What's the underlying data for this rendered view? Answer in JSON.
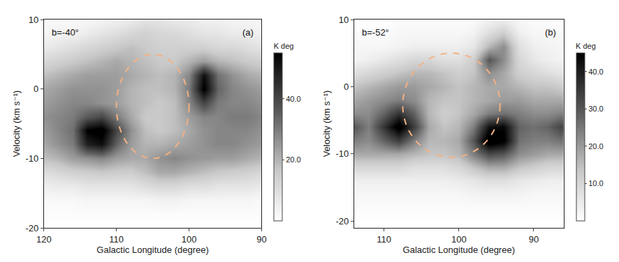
{
  "chart_data": [
    {
      "type": "heatmap",
      "title": "b=-40°",
      "label": "(a)",
      "x_label": "Galactic Longitude (degree)",
      "y_label": "Velocity (km s⁻¹)",
      "xlim": [
        120,
        90
      ],
      "xticks": [
        120,
        110,
        100,
        90
      ],
      "ylim": [
        -20,
        10
      ],
      "yticks": [
        -20,
        -10,
        0,
        10
      ],
      "x": [
        90,
        92,
        94,
        96,
        98,
        100,
        102,
        104,
        106,
        108,
        110,
        112,
        114,
        116,
        118,
        120
      ],
      "y": [
        -20,
        -18,
        -16,
        -14,
        -12,
        -10,
        -8,
        -6,
        -4,
        -2,
        0,
        2,
        4,
        6,
        8,
        10
      ],
      "z": [
        [
          0,
          0,
          0,
          0,
          0,
          0,
          0,
          0,
          0,
          0,
          0,
          0,
          0,
          0,
          0,
          0
        ],
        [
          1,
          1,
          1,
          1,
          1,
          1,
          1,
          1,
          1,
          1,
          1,
          1,
          1,
          1,
          1,
          1
        ],
        [
          2,
          3,
          3,
          3,
          3,
          3,
          4,
          4,
          3,
          3,
          3,
          3,
          3,
          2,
          2,
          2
        ],
        [
          6,
          8,
          8,
          8,
          10,
          10,
          12,
          12,
          10,
          8,
          8,
          8,
          8,
          6,
          6,
          5
        ],
        [
          12,
          14,
          15,
          16,
          18,
          20,
          22,
          22,
          18,
          15,
          15,
          16,
          15,
          14,
          12,
          10
        ],
        [
          20,
          22,
          24,
          24,
          25,
          26,
          28,
          26,
          22,
          22,
          24,
          28,
          26,
          24,
          20,
          18
        ],
        [
          24,
          26,
          28,
          28,
          26,
          24,
          22,
          20,
          20,
          24,
          34,
          52,
          48,
          30,
          26,
          22
        ],
        [
          26,
          28,
          28,
          28,
          26,
          22,
          18,
          16,
          18,
          26,
          40,
          58,
          55,
          32,
          28,
          24
        ],
        [
          28,
          30,
          30,
          28,
          28,
          24,
          18,
          16,
          16,
          22,
          30,
          40,
          36,
          30,
          28,
          26
        ],
        [
          26,
          28,
          28,
          30,
          40,
          28,
          18,
          16,
          18,
          20,
          24,
          26,
          28,
          28,
          26,
          24
        ],
        [
          24,
          26,
          28,
          34,
          56,
          30,
          20,
          18,
          18,
          20,
          24,
          26,
          26,
          26,
          24,
          22
        ],
        [
          20,
          22,
          26,
          32,
          52,
          28,
          20,
          18,
          20,
          22,
          24,
          24,
          24,
          22,
          20,
          18
        ],
        [
          14,
          16,
          18,
          20,
          24,
          20,
          16,
          16,
          18,
          20,
          22,
          20,
          18,
          16,
          14,
          12
        ],
        [
          8,
          10,
          12,
          12,
          14,
          14,
          14,
          14,
          16,
          18,
          16,
          14,
          12,
          10,
          8,
          6
        ],
        [
          4,
          6,
          6,
          8,
          8,
          10,
          12,
          12,
          14,
          12,
          10,
          8,
          6,
          4,
          4,
          3
        ],
        [
          2,
          3,
          3,
          4,
          4,
          6,
          6,
          8,
          8,
          6,
          4,
          3,
          2,
          2,
          2,
          2
        ]
      ],
      "colorbar": {
        "title": "K deg",
        "zlim": [
          0,
          55
        ],
        "ticks": [
          {
            "value": 20,
            "label": "20.0"
          },
          {
            "value": 40,
            "label": "40.0"
          }
        ]
      },
      "shell": {
        "x": [
          100,
          110
        ],
        "y": [
          -10,
          5
        ]
      }
    },
    {
      "type": "heatmap",
      "title": "b=-52°",
      "label": "(b)",
      "x_label": "Galactic Longitude (degree)",
      "y_label": "Velocity (km s⁻¹)",
      "xlim": [
        114,
        86
      ],
      "xticks": [
        110,
        100,
        90
      ],
      "ylim": [
        -21,
        10
      ],
      "yticks": [
        -20,
        -10,
        0,
        10
      ],
      "x": [
        86,
        88,
        90,
        92,
        94,
        96,
        98,
        100,
        102,
        104,
        106,
        108,
        110,
        112,
        114
      ],
      "y": [
        -20,
        -18,
        -16,
        -14,
        -12,
        -10,
        -8,
        -6,
        -4,
        -2,
        0,
        2,
        4,
        6,
        8,
        10
      ],
      "z": [
        [
          0,
          0,
          0,
          0,
          0,
          0,
          0,
          0,
          0,
          0,
          0,
          0,
          0,
          0,
          0
        ],
        [
          1,
          1,
          1,
          1,
          1,
          1,
          1,
          1,
          1,
          1,
          1,
          1,
          1,
          1,
          1
        ],
        [
          2,
          2,
          2,
          3,
          3,
          3,
          3,
          2,
          2,
          2,
          2,
          2,
          2,
          2,
          2
        ],
        [
          4,
          4,
          5,
          6,
          8,
          8,
          6,
          5,
          4,
          4,
          4,
          4,
          4,
          4,
          4
        ],
        [
          10,
          10,
          12,
          14,
          18,
          18,
          14,
          10,
          8,
          8,
          8,
          10,
          10,
          10,
          10
        ],
        [
          18,
          18,
          20,
          22,
          30,
          32,
          24,
          16,
          14,
          14,
          16,
          18,
          18,
          18,
          18
        ],
        [
          26,
          24,
          24,
          26,
          46,
          50,
          30,
          18,
          16,
          16,
          24,
          34,
          28,
          22,
          24
        ],
        [
          34,
          28,
          26,
          28,
          44,
          42,
          24,
          16,
          14,
          18,
          34,
          48,
          36,
          24,
          30
        ],
        [
          24,
          22,
          22,
          24,
          26,
          24,
          18,
          14,
          12,
          16,
          28,
          36,
          28,
          22,
          22
        ],
        [
          18,
          18,
          18,
          20,
          20,
          18,
          16,
          14,
          14,
          16,
          22,
          24,
          22,
          20,
          18
        ],
        [
          12,
          14,
          14,
          16,
          18,
          18,
          16,
          14,
          16,
          18,
          20,
          20,
          18,
          16,
          14
        ],
        [
          6,
          8,
          10,
          12,
          18,
          22,
          14,
          12,
          14,
          16,
          16,
          14,
          12,
          10,
          8
        ],
        [
          3,
          4,
          6,
          10,
          22,
          30,
          12,
          8,
          8,
          10,
          10,
          8,
          6,
          4,
          3
        ],
        [
          2,
          3,
          4,
          8,
          22,
          16,
          6,
          4,
          4,
          4,
          4,
          3,
          2,
          2,
          2
        ],
        [
          1,
          2,
          2,
          4,
          12,
          8,
          3,
          2,
          2,
          2,
          2,
          2,
          1,
          1,
          1
        ],
        [
          0,
          1,
          1,
          2,
          4,
          3,
          1,
          1,
          1,
          1,
          1,
          1,
          0,
          0,
          0
        ]
      ],
      "colorbar": {
        "title": "K deg",
        "zlim": [
          0,
          45
        ],
        "ticks": [
          {
            "value": 10,
            "label": "10.0"
          },
          {
            "value": 20,
            "label": "20.0"
          },
          {
            "value": 30,
            "label": "30.0"
          },
          {
            "value": 40,
            "label": "40.0"
          }
        ]
      },
      "shell": {
        "x": [
          94.5,
          107.5
        ],
        "y": [
          -10.5,
          5
        ]
      }
    }
  ]
}
